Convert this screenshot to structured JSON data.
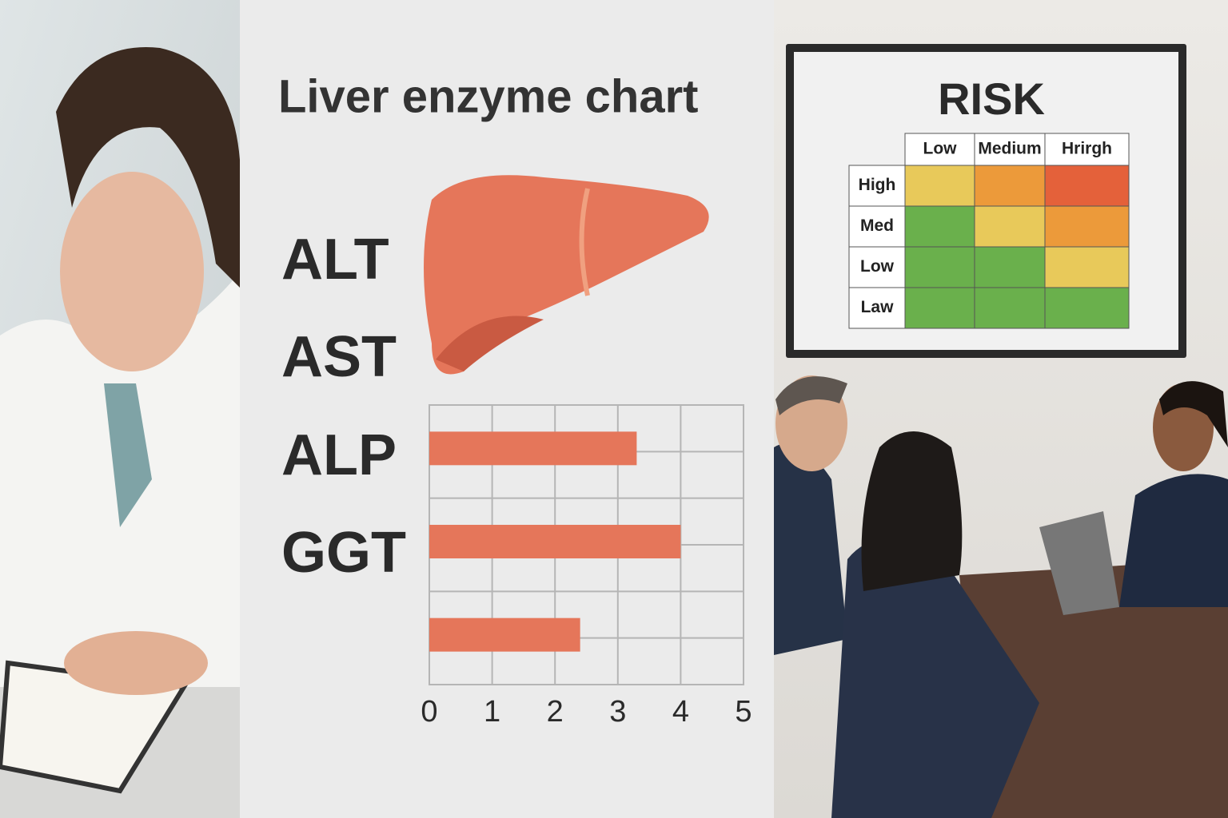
{
  "chart_data": {
    "type": "bar",
    "orientation": "horizontal",
    "title": "Liver enzyme chart",
    "side_labels": [
      "ALT",
      "AST",
      "ALP",
      "GGT"
    ],
    "categories": [
      null,
      null,
      null
    ],
    "values": [
      3.3,
      4.0,
      2.4
    ],
    "color": "#e5765a",
    "xlim": [
      0,
      5
    ],
    "xticks": [
      0,
      1,
      2,
      3,
      4,
      5
    ],
    "grid": true
  },
  "risk_matrix": {
    "title": "RISK",
    "columns": [
      "Low",
      "Medium",
      "Hrirgh"
    ],
    "rows": [
      "High",
      "Med",
      "Low",
      "Law"
    ],
    "cells": [
      [
        "#e8c95a",
        "#ec9a3a",
        "#e4613a"
      ],
      [
        "#6ab04c",
        "#e8c95a",
        "#ec9a3a"
      ],
      [
        "#6ab04c",
        "#6ab04c",
        "#e8c95a"
      ],
      [
        "#6ab04c",
        "#6ab04c",
        "#6ab04c"
      ]
    ]
  }
}
